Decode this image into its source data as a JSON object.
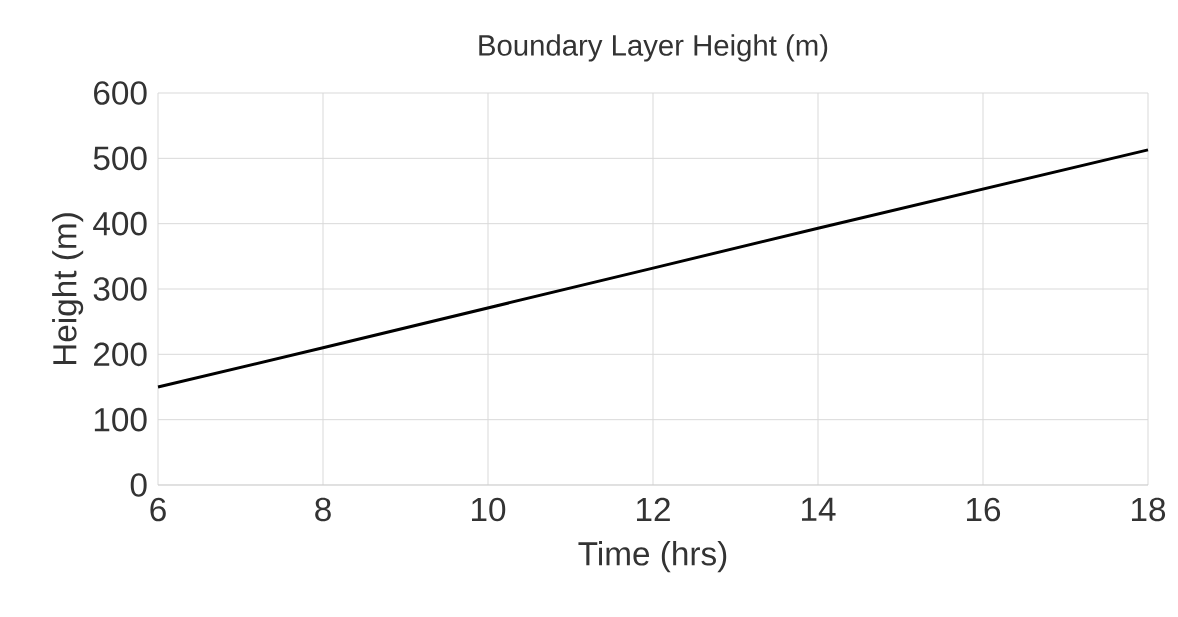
{
  "chart_data": {
    "type": "line",
    "title": "Boundary Layer Height (m)",
    "xlabel": "Time (hrs)",
    "ylabel": "Height (m)",
    "x": [
      6,
      8,
      10,
      12,
      14,
      16,
      18
    ],
    "series": [
      {
        "color": "#000000",
        "values": [
          150,
          210,
          271,
          332,
          393,
          453,
          513
        ]
      }
    ],
    "xlim": [
      6,
      18
    ],
    "ylim": [
      0,
      600
    ],
    "xticks": [
      6,
      8,
      10,
      12,
      14,
      16,
      18
    ],
    "yticks": [
      0,
      100,
      200,
      300,
      400,
      500,
      600
    ],
    "grid": true
  }
}
